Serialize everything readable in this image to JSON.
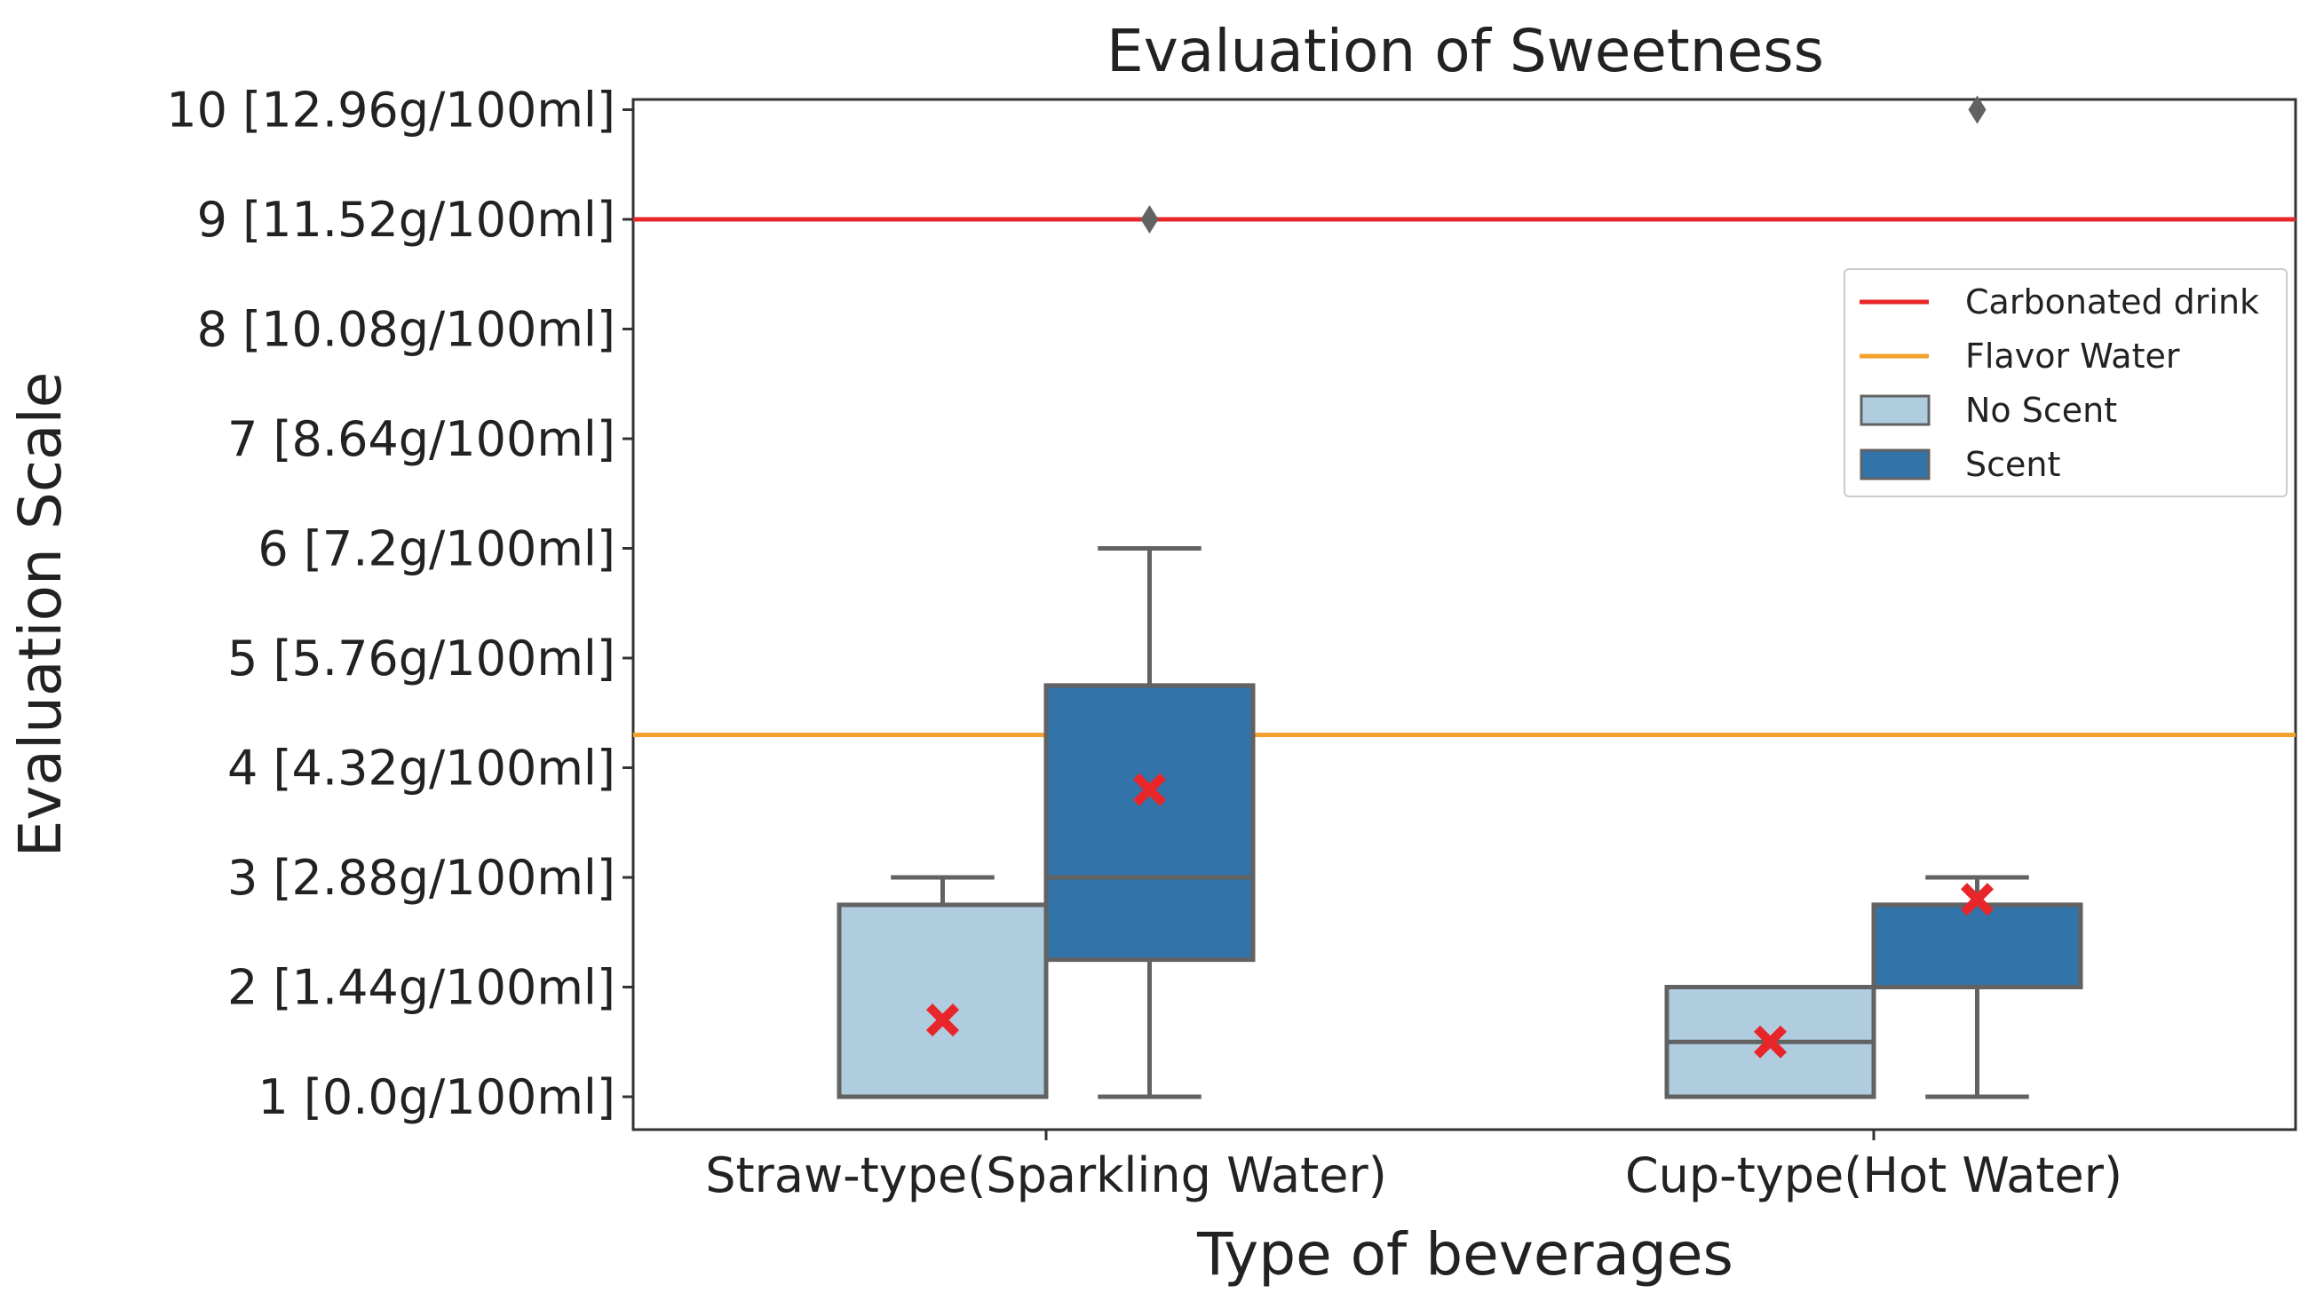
{
  "chart_data": {
    "type": "box",
    "title": "Evaluation of Sweetness",
    "xlabel": "Type of beverages",
    "ylabel": "Evaluation Scale",
    "ylim": [
      0.7,
      10.1
    ],
    "categories": [
      "Straw-type(Sparkling Water)",
      "Cup-type(Hot Water)"
    ],
    "yticks": [
      {
        "value": 1,
        "label": "1 [0.0g/100ml]"
      },
      {
        "value": 2,
        "label": "2 [1.44g/100ml]"
      },
      {
        "value": 3,
        "label": "3 [2.88g/100ml]"
      },
      {
        "value": 4,
        "label": "4 [4.32g/100ml]"
      },
      {
        "value": 5,
        "label": "5 [5.76g/100ml]"
      },
      {
        "value": 6,
        "label": "6 [7.2g/100ml]"
      },
      {
        "value": 7,
        "label": "7 [8.64g/100ml]"
      },
      {
        "value": 8,
        "label": "8 [10.08g/100ml]"
      },
      {
        "value": 9,
        "label": "9 [11.52g/100ml]"
      },
      {
        "value": 10,
        "label": "10 [12.96g/100ml]"
      }
    ],
    "reference_lines": [
      {
        "name": "Carbonated drink",
        "value": 9.0,
        "color": "#e8262a"
      },
      {
        "name": "Flavor Water",
        "value": 4.3,
        "color": "#f5a12d"
      }
    ],
    "series": [
      {
        "name": "No Scent",
        "color": "#b0cde0",
        "boxes": [
          {
            "category": 0,
            "whisker_low": 1,
            "q1": 1,
            "median": 1,
            "q3": 2.75,
            "whisker_high": 3,
            "mean": 1.7,
            "outliers": []
          },
          {
            "category": 1,
            "whisker_low": 1,
            "q1": 1,
            "median": 1.5,
            "q3": 2,
            "whisker_high": 2,
            "mean": 1.5,
            "outliers": []
          }
        ]
      },
      {
        "name": "Scent",
        "color": "#3274a9",
        "boxes": [
          {
            "category": 0,
            "whisker_low": 1,
            "q1": 2.25,
            "median": 3,
            "q3": 4.75,
            "whisker_high": 6,
            "mean": 3.8,
            "outliers": [
              9
            ]
          },
          {
            "category": 1,
            "whisker_low": 1,
            "q1": 2,
            "median": 2.75,
            "q3": 2.75,
            "whisker_high": 3,
            "mean": 2.8,
            "outliers": [
              10
            ]
          }
        ]
      }
    ],
    "mean_marker_color": "#e8262a",
    "legend": {
      "position": "upper-right",
      "items": [
        {
          "label": "Carbonated drink",
          "kind": "line",
          "color": "#e8262a"
        },
        {
          "label": "Flavor Water",
          "kind": "line",
          "color": "#f5a12d"
        },
        {
          "label": "No Scent",
          "kind": "patch",
          "color": "#b0cde0"
        },
        {
          "label": "Scent",
          "kind": "patch",
          "color": "#3274a9"
        }
      ]
    },
    "grid": false
  }
}
